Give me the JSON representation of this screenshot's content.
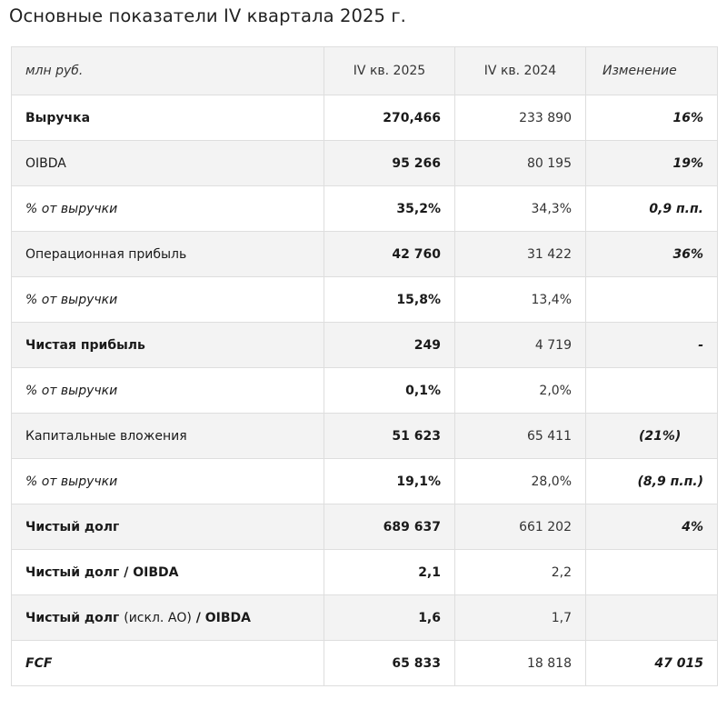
{
  "title": "Основные показатели IV квартала 2025 г.",
  "headers": [
    "млн руб.",
    "IV кв. 2025",
    "IV кв. 2024",
    "Изменение"
  ],
  "rows": [
    {
      "label": "Выручка",
      "cur": "270,466",
      "prev": "233 890",
      "chg": "16%"
    },
    {
      "label": "OIBDA",
      "cur": "95 266",
      "prev": "80 195",
      "chg": "19%"
    },
    {
      "label": "% от выручки",
      "cur": "35,2%",
      "prev": "34,3%",
      "chg": "0,9 п.п."
    },
    {
      "label": "Операционная прибыль",
      "cur": "42 760",
      "prev": "31 422",
      "chg": "36%"
    },
    {
      "label": "% от выручки",
      "cur": "15,8%",
      "prev": "13,4%",
      "chg": ""
    },
    {
      "label": "Чистая прибыль",
      "cur": "249",
      "prev": "4 719",
      "chg": "-"
    },
    {
      "label": "% от выручки",
      "cur": "0,1%",
      "prev": "2,0%",
      "chg": ""
    },
    {
      "label": "Капитальные вложения",
      "cur": "51 623",
      "prev": "65 411",
      "chg": "(21%)"
    },
    {
      "label": "% от выручки",
      "cur": "19,1%",
      "prev": "28,0%",
      "chg": "(8,9 п.п.)"
    },
    {
      "label": "Чистый долг",
      "cur": "689 637",
      "prev": "661 202",
      "chg": "4%"
    },
    {
      "label": "Чистый долг / OIBDA",
      "cur": "2,1",
      "prev": "2,2",
      "chg": ""
    },
    {
      "label_a": "Чистый долг ",
      "label_b": "(искл. АО)",
      "label_c": " / OIBDA",
      "cur": "1,6",
      "prev": "1,7",
      "chg": ""
    },
    {
      "label": "FCF",
      "cur": "65 833",
      "prev": "18 818",
      "chg": "47 015"
    }
  ]
}
